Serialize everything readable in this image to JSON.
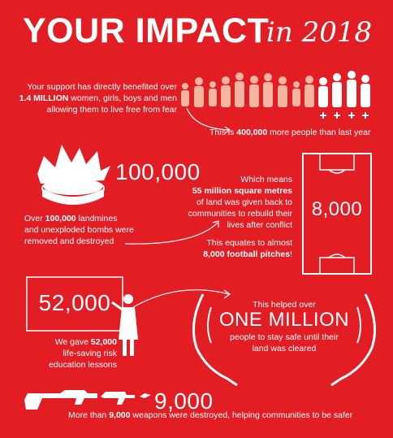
{
  "title": {
    "main": "YOUR IMPACT",
    "script": "in 2018"
  },
  "support": {
    "line1": "Your support has directly benefited over",
    "line2_bold": "1.4 MILLION",
    "line2_rest": " women, girls, boys and men",
    "line3": "allowing them to live free from fear",
    "more_pre": "This is ",
    "more_bold": "400,000",
    "more_post": " more people than last year"
  },
  "landmines": {
    "number": "100,000",
    "line1_pre": "Over ",
    "line1_bold": "100,000",
    "line1_post": " landmines",
    "line2": "and unexploded bombs were",
    "line3": "removed and destroyed"
  },
  "land": {
    "line1": "Which means",
    "line2_bold": "55 million square metres",
    "line3": "of land was given back to",
    "line4": "communities to rebuild their",
    "line5": "lives after conflict",
    "line6": "This equates to almost",
    "line7_bold": "8,000 football pitches",
    "line7_post": "!",
    "pitch_number": "8,000"
  },
  "education": {
    "number": "52,000",
    "line1_pre": "We gave ",
    "line1_bold": "52,000",
    "line2": "life-saving risk",
    "line3": "education lessons"
  },
  "safe": {
    "line1": "This helped over",
    "big": "ONE MILLION",
    "line2": "people to stay safe until their",
    "line3": "land was cleared"
  },
  "weapons": {
    "number": "9,000",
    "line_pre": "More than ",
    "line_bold": "9,000",
    "line_post": " weapons were destroyed, helping communities to be safer"
  },
  "icons": [
    "people-crowd-icon",
    "explosion-icon",
    "football-pitch-icon",
    "teacher-icon",
    "cupped-hands-icon",
    "weapons-icon"
  ],
  "colors": {
    "background": "#e31d24",
    "figure_light": "#f6b5a0",
    "text": "#ffffff"
  }
}
